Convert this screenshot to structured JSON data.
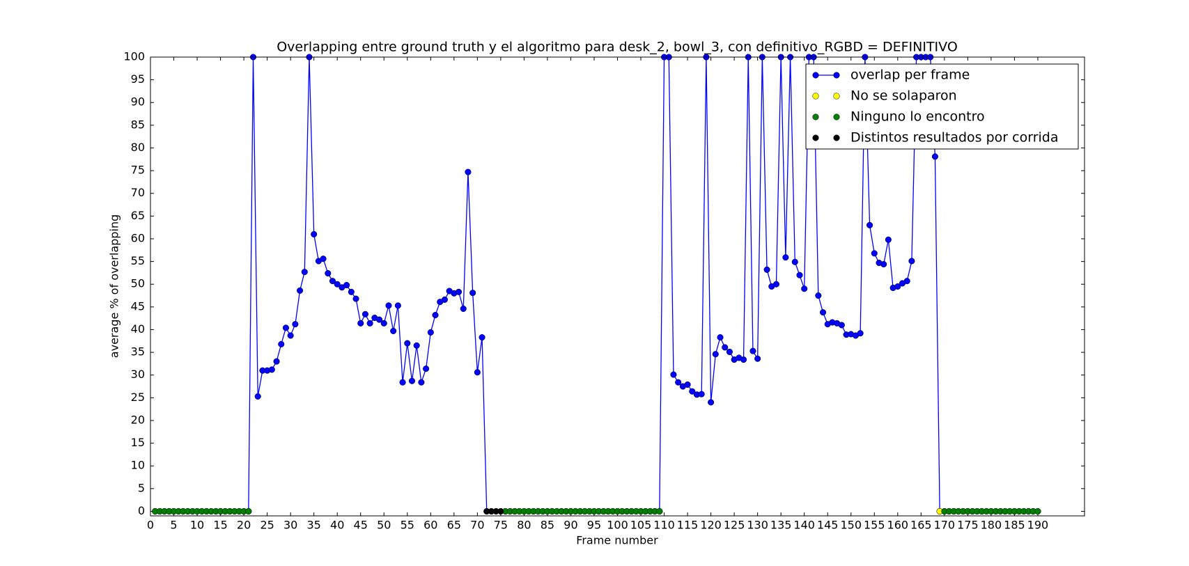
{
  "chart_data": {
    "type": "line",
    "title": "Overlapping entre ground truth y el algoritmo para desk_2, bowl_3, con definitivo_RGBD = DEFINITIVO",
    "xlabel": "Frame number",
    "ylabel": "average % of overlapping",
    "xlim": [
      0,
      200
    ],
    "ylim": [
      -1,
      100
    ],
    "xticks": [
      0,
      5,
      10,
      15,
      20,
      25,
      30,
      35,
      40,
      45,
      50,
      55,
      60,
      65,
      70,
      75,
      80,
      85,
      90,
      95,
      100,
      105,
      110,
      115,
      120,
      125,
      130,
      135,
      140,
      145,
      150,
      155,
      160,
      165,
      170,
      175,
      180,
      185,
      190
    ],
    "yticks": [
      0,
      5,
      10,
      15,
      20,
      25,
      30,
      35,
      40,
      45,
      50,
      55,
      60,
      65,
      70,
      75,
      80,
      85,
      90,
      95,
      100
    ],
    "legend": "upper right",
    "series": [
      {
        "name": "overlap per frame",
        "color": "#0000ff",
        "line": true,
        "x": [
          1,
          2,
          3,
          4,
          5,
          6,
          7,
          8,
          9,
          10,
          11,
          12,
          13,
          14,
          15,
          16,
          17,
          18,
          19,
          20,
          21,
          22,
          23,
          24,
          25,
          26,
          27,
          28,
          29,
          30,
          31,
          32,
          33,
          34,
          35,
          36,
          37,
          38,
          39,
          40,
          41,
          42,
          43,
          44,
          45,
          46,
          47,
          48,
          49,
          50,
          51,
          52,
          53,
          54,
          55,
          56,
          57,
          58,
          59,
          60,
          61,
          62,
          63,
          64,
          65,
          66,
          67,
          68,
          69,
          70,
          71,
          72,
          73,
          74,
          75,
          76,
          77,
          78,
          79,
          80,
          81,
          82,
          83,
          84,
          85,
          86,
          87,
          88,
          89,
          90,
          91,
          92,
          93,
          94,
          95,
          96,
          97,
          98,
          99,
          100,
          101,
          102,
          103,
          104,
          105,
          106,
          107,
          108,
          109,
          110,
          111,
          112,
          113,
          114,
          115,
          116,
          117,
          118,
          119,
          120,
          121,
          122,
          123,
          124,
          125,
          126,
          127,
          128,
          129,
          130,
          131,
          132,
          133,
          134,
          135,
          136,
          137,
          138,
          139,
          140,
          141,
          142,
          143,
          144,
          145,
          146,
          147,
          148,
          149,
          150,
          151,
          152,
          153,
          154,
          155,
          156,
          157,
          158,
          159,
          160,
          161,
          162,
          163,
          164,
          165,
          166,
          167,
          168,
          169,
          170,
          171,
          172,
          173,
          174,
          175,
          176,
          177,
          178,
          179,
          180,
          181,
          182,
          183,
          184,
          185,
          186,
          187,
          188,
          189,
          190
        ],
        "values": [
          0,
          0,
          0,
          0,
          0,
          0,
          0,
          0,
          0,
          0,
          0,
          0,
          0,
          0,
          0,
          0,
          0,
          0,
          0,
          0,
          0,
          100,
          25.3,
          31.0,
          31.0,
          31.2,
          33.0,
          36.8,
          40.4,
          38.7,
          41.2,
          48.6,
          52.7,
          100,
          61.0,
          55.1,
          55.6,
          52.4,
          50.7,
          50.0,
          49.3,
          49.8,
          48.3,
          46.8,
          41.4,
          43.4,
          41.4,
          42.6,
          42.2,
          41.4,
          45.3,
          39.7,
          45.3,
          28.4,
          37.0,
          28.7,
          36.5,
          28.4,
          31.4,
          39.4,
          43.2,
          46.1,
          46.6,
          48.5,
          48.0,
          48.3,
          44.6,
          74.7,
          48.1,
          30.6,
          38.3,
          0,
          0,
          0,
          0,
          0,
          0,
          0,
          0,
          0,
          0,
          0,
          0,
          0,
          0,
          0,
          0,
          0,
          0,
          0,
          0,
          0,
          0,
          0,
          0,
          0,
          0,
          0,
          0,
          0,
          0,
          0,
          0,
          0,
          0,
          0,
          0,
          0,
          0,
          100,
          100,
          30.1,
          28.4,
          27.5,
          27.9,
          26.4,
          25.7,
          25.8,
          100,
          24.0,
          34.6,
          38.3,
          36.1,
          35.1,
          33.4,
          33.8,
          33.4,
          100,
          35.3,
          33.6,
          100,
          53.2,
          49.5,
          50.0,
          100,
          55.9,
          100,
          54.9,
          52.0,
          49.0,
          100,
          100,
          47.5,
          43.8,
          41.2,
          41.6,
          41.4,
          41.0,
          38.9,
          39.0,
          38.7,
          39.2,
          100,
          63.0,
          56.8,
          54.7,
          54.4,
          59.8,
          49.2,
          49.5,
          50.2,
          50.7,
          55.1,
          100,
          100,
          100,
          100,
          78.1,
          0,
          0,
          0,
          0,
          0,
          0,
          0,
          0,
          0,
          0,
          0,
          0,
          0,
          0,
          0,
          0,
          0,
          0,
          0,
          0,
          0,
          0
        ]
      },
      {
        "name": "No se solaparon",
        "color": "#ffff00",
        "line": false,
        "x": [
          169
        ],
        "values": [
          0
        ]
      },
      {
        "name": "Ninguno lo encontro",
        "color": "#008000",
        "line": false,
        "x": [
          1,
          2,
          3,
          4,
          5,
          6,
          7,
          8,
          9,
          10,
          11,
          12,
          13,
          14,
          15,
          16,
          17,
          18,
          19,
          20,
          21,
          76,
          77,
          78,
          79,
          80,
          81,
          82,
          83,
          84,
          85,
          86,
          87,
          88,
          89,
          90,
          91,
          92,
          93,
          94,
          95,
          96,
          97,
          98,
          99,
          100,
          101,
          102,
          103,
          104,
          105,
          106,
          107,
          108,
          109,
          170,
          171,
          172,
          173,
          174,
          175,
          176,
          177,
          178,
          179,
          180,
          181,
          182,
          183,
          184,
          185,
          186,
          187,
          188,
          189,
          190
        ],
        "values": [
          0,
          0,
          0,
          0,
          0,
          0,
          0,
          0,
          0,
          0,
          0,
          0,
          0,
          0,
          0,
          0,
          0,
          0,
          0,
          0,
          0,
          0,
          0,
          0,
          0,
          0,
          0,
          0,
          0,
          0,
          0,
          0,
          0,
          0,
          0,
          0,
          0,
          0,
          0,
          0,
          0,
          0,
          0,
          0,
          0,
          0,
          0,
          0,
          0,
          0,
          0,
          0,
          0,
          0,
          0,
          0,
          0,
          0,
          0,
          0,
          0,
          0,
          0,
          0,
          0,
          0,
          0,
          0,
          0,
          0,
          0,
          0,
          0,
          0,
          0,
          0
        ]
      },
      {
        "name": "Distintos resultados por corrida",
        "color": "#000000",
        "line": false,
        "x": [
          72,
          73,
          74,
          75
        ],
        "values": [
          0,
          0,
          0,
          0
        ]
      }
    ]
  }
}
